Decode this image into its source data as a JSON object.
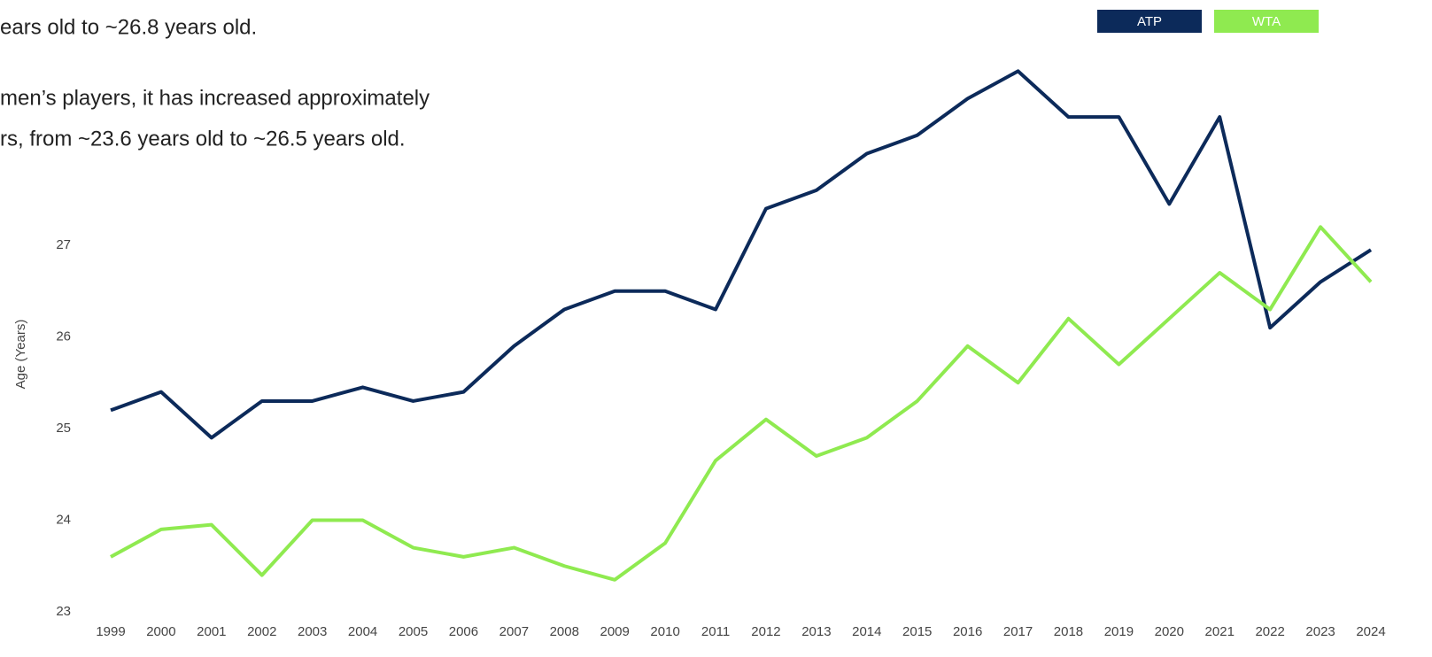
{
  "chart_data": {
    "type": "line",
    "text_lines": [
      "ears old to ~26.8 years old.",
      "men’s players, it has increased approximately",
      "rs, from ~23.6 years old to ~26.5 years old."
    ],
    "y_label": "Age (Years)",
    "categories": [
      "1999",
      "2000",
      "2001",
      "2002",
      "2003",
      "2004",
      "2005",
      "2006",
      "2007",
      "2008",
      "2009",
      "2010",
      "2011",
      "2012",
      "2013",
      "2014",
      "2015",
      "2016",
      "2017",
      "2018",
      "2019",
      "2020",
      "2021",
      "2022",
      "2023",
      "2024"
    ],
    "series": [
      {
        "name": "ATP",
        "color": "#0c2a5a",
        "values": [
          25.2,
          25.4,
          24.9,
          25.3,
          25.3,
          25.45,
          25.3,
          25.4,
          25.9,
          26.3,
          26.5,
          26.5,
          26.3,
          27.4,
          27.6,
          28.0,
          28.2,
          28.6,
          28.9,
          28.4,
          28.4,
          27.45,
          28.4,
          26.1,
          26.6,
          26.95
        ]
      },
      {
        "name": "WTA",
        "color": "#8fea50",
        "values": [
          23.6,
          23.9,
          23.95,
          23.4,
          24.0,
          24.0,
          23.7,
          23.6,
          23.7,
          23.5,
          23.35,
          23.75,
          24.65,
          25.1,
          24.7,
          24.9,
          25.3,
          25.9,
          25.5,
          26.2,
          25.7,
          26.2,
          26.7,
          26.3,
          27.2,
          26.6
        ]
      }
    ],
    "ylim": [
      23,
      29
    ],
    "yticks": [
      23,
      24,
      25,
      26,
      27
    ],
    "legend": "top-right"
  }
}
